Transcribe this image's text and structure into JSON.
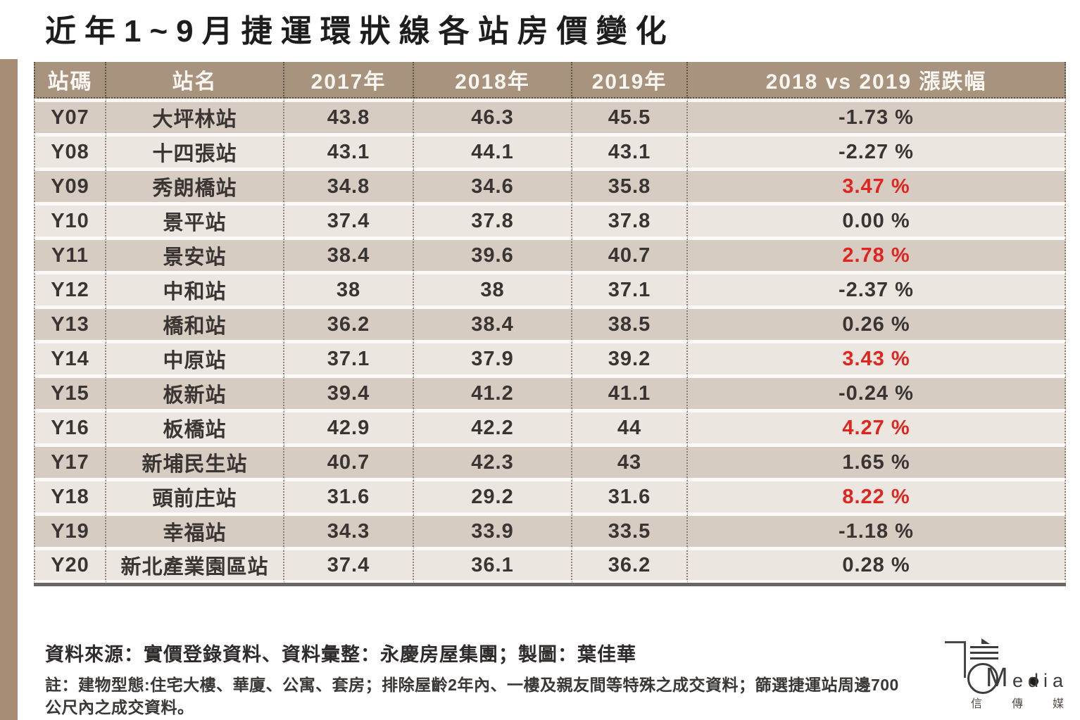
{
  "title": "近年1~9月捷運環狀線各站房價變化",
  "chart_data": {
    "type": "table",
    "title": "近年1~9月捷運環狀線各站房價變化",
    "columns": [
      "站碼",
      "站名",
      "2017年",
      "2018年",
      "2019年",
      "2018 vs 2019 漲跌幅"
    ],
    "rows": [
      {
        "code": "Y07",
        "name": "大坪林站",
        "y2017": "43.8",
        "y2018": "46.3",
        "y2019": "45.5",
        "change": "-1.73 %",
        "change_red": false
      },
      {
        "code": "Y08",
        "name": "十四張站",
        "y2017": "43.1",
        "y2018": "44.1",
        "y2019": "43.1",
        "change": "-2.27 %",
        "change_red": false
      },
      {
        "code": "Y09",
        "name": "秀朗橋站",
        "y2017": "34.8",
        "y2018": "34.6",
        "y2019": "35.8",
        "change": "3.47 %",
        "change_red": true
      },
      {
        "code": "Y10",
        "name": "景平站",
        "y2017": "37.4",
        "y2018": "37.8",
        "y2019": "37.8",
        "change": "0.00 %",
        "change_red": false
      },
      {
        "code": "Y11",
        "name": "景安站",
        "y2017": "38.4",
        "y2018": "39.6",
        "y2019": "40.7",
        "change": "2.78 %",
        "change_red": true
      },
      {
        "code": "Y12",
        "name": "中和站",
        "y2017": "38",
        "y2018": "38",
        "y2019": "37.1",
        "change": "-2.37 %",
        "change_red": false
      },
      {
        "code": "Y13",
        "name": "橋和站",
        "y2017": "36.2",
        "y2018": "38.4",
        "y2019": "38.5",
        "change": "0.26 %",
        "change_red": false
      },
      {
        "code": "Y14",
        "name": "中原站",
        "y2017": "37.1",
        "y2018": "37.9",
        "y2019": "39.2",
        "change": "3.43 %",
        "change_red": true
      },
      {
        "code": "Y15",
        "name": "板新站",
        "y2017": "39.4",
        "y2018": "41.2",
        "y2019": "41.1",
        "change": "-0.24 %",
        "change_red": false
      },
      {
        "code": "Y16",
        "name": "板橋站",
        "y2017": "42.9",
        "y2018": "42.2",
        "y2019": "44",
        "change": "4.27 %",
        "change_red": true
      },
      {
        "code": "Y17",
        "name": "新埔民生站",
        "y2017": "40.7",
        "y2018": "42.3",
        "y2019": "43",
        "change": "1.65 %",
        "change_red": false
      },
      {
        "code": "Y18",
        "name": "頭前庄站",
        "y2017": "31.6",
        "y2018": "29.2",
        "y2019": "31.6",
        "change": "8.22 %",
        "change_red": true
      },
      {
        "code": "Y19",
        "name": "幸福站",
        "y2017": "34.3",
        "y2018": "33.9",
        "y2019": "33.5",
        "change": "-1.18 %",
        "change_red": false
      },
      {
        "code": "Y20",
        "name": "新北產業園區站",
        "y2017": "37.4",
        "y2018": "36.1",
        "y2019": "36.2",
        "change": "0.28 %",
        "change_red": false
      }
    ],
    "legend_position": "none",
    "grid": "dotted column separators"
  },
  "footer": {
    "source": "資料來源：實價登錄資料、資料彙整：永慶房屋集團；製圖：葉佳華",
    "note_line1": "註：建物型態:住宅大樓、華廈、公寓、套房；排除屋齡2年內、一樓及親友間等特殊之成交資料；篩選捷運站周邊700",
    "note_line2": "公尺內之成交資料。"
  },
  "logo": {
    "monogram_letter": "M",
    "word": "edia",
    "cjk": "信傳媒"
  },
  "colors": {
    "header_bg": "#a8937e",
    "row_dark": "#d6ccc2",
    "row_light": "#ebe6e0",
    "stripe": "#a68d73",
    "accent_red": "#e2241f",
    "table_bottom_border": "#6b6763"
  }
}
